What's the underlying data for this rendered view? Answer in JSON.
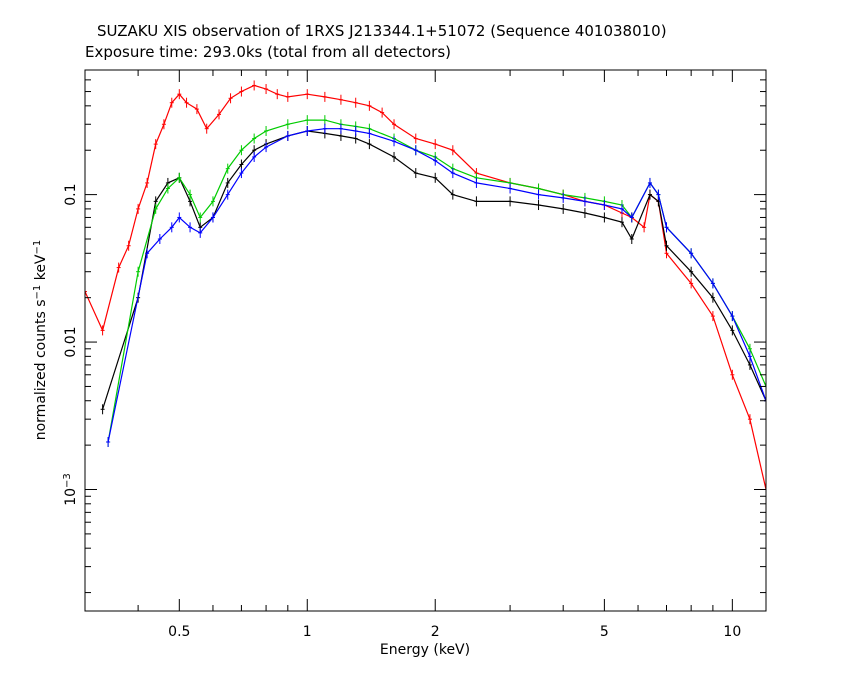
{
  "header": {
    "title": "SUZAKU XIS observation of 1RXS J213344.1+51072 (Sequence 401038010)",
    "subtitle": "Exposure time: 293.0ks (total from all detectors)"
  },
  "chart_data": {
    "type": "scatter",
    "title": "SUZAKU XIS observation of 1RXS J213344.1+51072 (Sequence 401038010)",
    "subtitle": "Exposure time: 293.0ks (total from all detectors)",
    "xlabel": "Energy (keV)",
    "ylabel": "normalized counts s^-1 keV^-1",
    "xscale": "log",
    "yscale": "log",
    "xlim": [
      0.3,
      12
    ],
    "ylim": [
      0.00015,
      0.7
    ],
    "grid": false,
    "x_ticks": [
      "0.5",
      "1",
      "2",
      "5",
      "10"
    ],
    "x_tick_values": [
      0.5,
      1,
      2,
      5,
      10
    ],
    "y_ticks": [
      "10^-3",
      "0.01",
      "0.1"
    ],
    "y_tick_values": [
      0.001,
      0.01,
      0.1
    ],
    "series": [
      {
        "color": "#ff0000",
        "points": [
          [
            0.3,
            0.022
          ],
          [
            0.33,
            0.012
          ],
          [
            0.36,
            0.032
          ],
          [
            0.38,
            0.045
          ],
          [
            0.4,
            0.08
          ],
          [
            0.42,
            0.12
          ],
          [
            0.44,
            0.22
          ],
          [
            0.46,
            0.3
          ],
          [
            0.48,
            0.42
          ],
          [
            0.5,
            0.48
          ],
          [
            0.52,
            0.42
          ],
          [
            0.55,
            0.38
          ],
          [
            0.58,
            0.28
          ],
          [
            0.62,
            0.35
          ],
          [
            0.66,
            0.45
          ],
          [
            0.7,
            0.5
          ],
          [
            0.75,
            0.55
          ],
          [
            0.8,
            0.52
          ],
          [
            0.85,
            0.48
          ],
          [
            0.9,
            0.46
          ],
          [
            1.0,
            0.48
          ],
          [
            1.1,
            0.46
          ],
          [
            1.2,
            0.44
          ],
          [
            1.3,
            0.42
          ],
          [
            1.4,
            0.4
          ],
          [
            1.5,
            0.36
          ],
          [
            1.6,
            0.3
          ],
          [
            1.8,
            0.24
          ],
          [
            2.0,
            0.22
          ],
          [
            2.2,
            0.2
          ],
          [
            2.5,
            0.14
          ],
          [
            3.0,
            0.12
          ],
          [
            3.5,
            0.11
          ],
          [
            4.0,
            0.1
          ],
          [
            4.5,
            0.09
          ],
          [
            5.0,
            0.085
          ],
          [
            5.5,
            0.075
          ],
          [
            5.8,
            0.07
          ],
          [
            6.2,
            0.06
          ],
          [
            6.4,
            0.1
          ],
          [
            6.7,
            0.09
          ],
          [
            7.0,
            0.04
          ],
          [
            8.0,
            0.025
          ],
          [
            9.0,
            0.015
          ],
          [
            10.0,
            0.006
          ],
          [
            11.0,
            0.003
          ],
          [
            12.0,
            0.001
          ]
        ]
      },
      {
        "color": "#000000",
        "points": [
          [
            0.33,
            0.0035
          ],
          [
            0.4,
            0.02
          ],
          [
            0.44,
            0.09
          ],
          [
            0.47,
            0.12
          ],
          [
            0.5,
            0.13
          ],
          [
            0.53,
            0.09
          ],
          [
            0.56,
            0.06
          ],
          [
            0.6,
            0.07
          ],
          [
            0.65,
            0.12
          ],
          [
            0.7,
            0.16
          ],
          [
            0.75,
            0.2
          ],
          [
            0.8,
            0.22
          ],
          [
            0.9,
            0.25
          ],
          [
            1.0,
            0.27
          ],
          [
            1.1,
            0.26
          ],
          [
            1.2,
            0.25
          ],
          [
            1.3,
            0.24
          ],
          [
            1.4,
            0.22
          ],
          [
            1.6,
            0.18
          ],
          [
            1.8,
            0.14
          ],
          [
            2.0,
            0.13
          ],
          [
            2.2,
            0.1
          ],
          [
            2.5,
            0.09
          ],
          [
            3.0,
            0.09
          ],
          [
            3.5,
            0.085
          ],
          [
            4.0,
            0.08
          ],
          [
            4.5,
            0.075
          ],
          [
            5.0,
            0.07
          ],
          [
            5.5,
            0.065
          ],
          [
            5.8,
            0.05
          ],
          [
            6.4,
            0.1
          ],
          [
            6.7,
            0.09
          ],
          [
            7.0,
            0.045
          ],
          [
            8.0,
            0.03
          ],
          [
            9.0,
            0.02
          ],
          [
            10.0,
            0.012
          ],
          [
            11.0,
            0.007
          ],
          [
            12.0,
            0.004
          ]
        ]
      },
      {
        "color": "#00cc00",
        "points": [
          [
            0.34,
            0.0021
          ],
          [
            0.4,
            0.03
          ],
          [
            0.44,
            0.08
          ],
          [
            0.47,
            0.11
          ],
          [
            0.5,
            0.13
          ],
          [
            0.53,
            0.1
          ],
          [
            0.56,
            0.07
          ],
          [
            0.6,
            0.09
          ],
          [
            0.65,
            0.15
          ],
          [
            0.7,
            0.2
          ],
          [
            0.75,
            0.24
          ],
          [
            0.8,
            0.27
          ],
          [
            0.9,
            0.3
          ],
          [
            1.0,
            0.32
          ],
          [
            1.1,
            0.32
          ],
          [
            1.2,
            0.3
          ],
          [
            1.3,
            0.29
          ],
          [
            1.4,
            0.28
          ],
          [
            1.6,
            0.24
          ],
          [
            1.8,
            0.2
          ],
          [
            2.0,
            0.18
          ],
          [
            2.2,
            0.15
          ],
          [
            2.5,
            0.13
          ],
          [
            3.0,
            0.12
          ],
          [
            3.5,
            0.11
          ],
          [
            4.0,
            0.1
          ],
          [
            4.5,
            0.095
          ],
          [
            5.0,
            0.09
          ],
          [
            5.5,
            0.085
          ],
          [
            5.8,
            0.07
          ],
          [
            6.4,
            0.12
          ],
          [
            6.7,
            0.1
          ],
          [
            7.0,
            0.06
          ],
          [
            8.0,
            0.04
          ],
          [
            9.0,
            0.025
          ],
          [
            10.0,
            0.015
          ],
          [
            11.0,
            0.009
          ],
          [
            12.0,
            0.005
          ]
        ]
      },
      {
        "color": "#0000ff",
        "points": [
          [
            0.34,
            0.0021
          ],
          [
            0.42,
            0.04
          ],
          [
            0.45,
            0.05
          ],
          [
            0.48,
            0.06
          ],
          [
            0.5,
            0.07
          ],
          [
            0.53,
            0.06
          ],
          [
            0.56,
            0.055
          ],
          [
            0.6,
            0.07
          ],
          [
            0.65,
            0.1
          ],
          [
            0.7,
            0.14
          ],
          [
            0.75,
            0.18
          ],
          [
            0.8,
            0.21
          ],
          [
            0.9,
            0.25
          ],
          [
            1.0,
            0.27
          ],
          [
            1.1,
            0.28
          ],
          [
            1.2,
            0.28
          ],
          [
            1.3,
            0.27
          ],
          [
            1.4,
            0.26
          ],
          [
            1.6,
            0.23
          ],
          [
            1.8,
            0.2
          ],
          [
            2.0,
            0.17
          ],
          [
            2.2,
            0.14
          ],
          [
            2.5,
            0.12
          ],
          [
            3.0,
            0.11
          ],
          [
            3.5,
            0.1
          ],
          [
            4.0,
            0.095
          ],
          [
            4.5,
            0.09
          ],
          [
            5.0,
            0.085
          ],
          [
            5.5,
            0.08
          ],
          [
            5.8,
            0.07
          ],
          [
            6.4,
            0.12
          ],
          [
            6.7,
            0.1
          ],
          [
            7.0,
            0.06
          ],
          [
            8.0,
            0.04
          ],
          [
            9.0,
            0.025
          ],
          [
            10.0,
            0.015
          ],
          [
            11.0,
            0.008
          ],
          [
            12.0,
            0.004
          ]
        ]
      }
    ]
  }
}
